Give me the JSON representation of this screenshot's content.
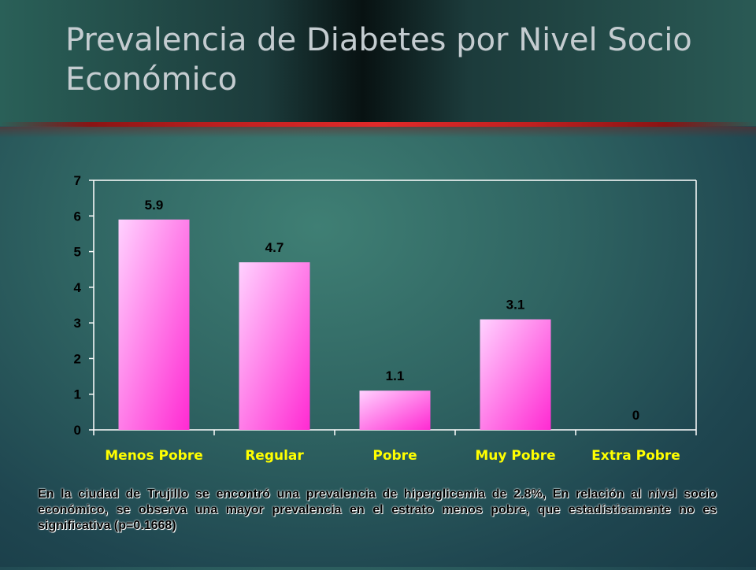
{
  "slide": {
    "title": "Prevalencia de Diabetes por Nivel Socio Económico",
    "caption": "En la ciudad de Trujillo se encontró una prevalencia de hiperglicemia de 2.8%, En relación al nivel socio económico, se observa una mayor prevalencia en el estrato menos pobre, que estadísticamente no es significativa (p=0.1668)"
  },
  "chart_data": {
    "type": "bar",
    "title": "",
    "xlabel": "",
    "ylabel": "",
    "categories": [
      "Menos Pobre",
      "Regular",
      "Pobre",
      "Muy Pobre",
      "Extra Pobre"
    ],
    "values": [
      5.9,
      4.7,
      1.1,
      3.1,
      0
    ],
    "value_labels": [
      "5.9",
      "4.7",
      "1.1",
      "3.1",
      "0"
    ],
    "ylim": [
      0,
      7
    ],
    "yticks": [
      0,
      1,
      2,
      3,
      4,
      5,
      6,
      7
    ],
    "grid": false,
    "legend": "none",
    "colors": {
      "bar_light": "#ffd2ff",
      "bar_dark": "#ff2ad2",
      "category_label": "#ffff00",
      "axis": "#ffffff",
      "text": "#000000",
      "plot_bg": "#3f7a6f"
    }
  }
}
